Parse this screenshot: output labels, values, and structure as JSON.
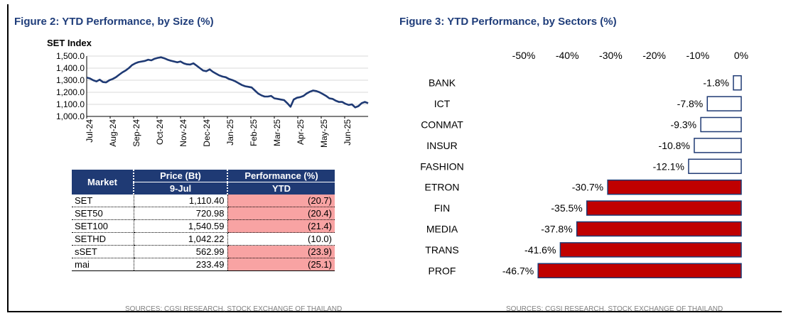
{
  "figures": {
    "left_title": "Figure 2: YTD Performance, by Size (%)",
    "right_title": "Figure 3: YTD Performance, by Sectors (%)",
    "left_source": "SOURCES: CGSI RESEARCH,  STOCK EXCHANGE OF THAILAND",
    "right_source": "SOURCES: CGSI RESEARCH,  STOCK EXCHANGE OF THAILAND"
  },
  "colors": {
    "title": "#1f3d7a",
    "line": "#1f3a74",
    "bar_fill": "#c00000",
    "bar_small_fill": "#ffffff",
    "bar_border": "#1f3a74",
    "table_header": "#1f3a74",
    "perf_highlight": "#f8a3a3"
  },
  "chart_data": [
    {
      "type": "line",
      "title": "SET Index",
      "xlabel": "",
      "ylabel": "",
      "ylim": [
        1000,
        1500
      ],
      "yticks": [
        "1,000.0",
        "1,100.0",
        "1,200.0",
        "1,300.0",
        "1,400.0",
        "1,500.0"
      ],
      "x_tick_labels": [
        "Jul-24",
        "Aug-24",
        "Sep-24",
        "Oct-24",
        "Nov-24",
        "Dec-24",
        "Jan-25",
        "Feb-25",
        "Mar-25",
        "Apr-25",
        "May-25",
        "Jun-25"
      ],
      "grid": true,
      "series": [
        {
          "values": [
            1322,
            1315,
            1300,
            1290,
            1305,
            1285,
            1282,
            1300,
            1310,
            1325,
            1345,
            1365,
            1380,
            1400,
            1425,
            1440,
            1450,
            1455,
            1460,
            1470,
            1465,
            1478,
            1485,
            1490,
            1482,
            1470,
            1462,
            1455,
            1448,
            1455,
            1440,
            1432,
            1430,
            1440,
            1420,
            1400,
            1380,
            1375,
            1390,
            1370,
            1355,
            1340,
            1330,
            1325,
            1310,
            1302,
            1290,
            1275,
            1260,
            1250,
            1245,
            1240,
            1215,
            1190,
            1175,
            1165,
            1165,
            1170,
            1150,
            1145,
            1140,
            1135,
            1110,
            1080,
            1140,
            1155,
            1160,
            1170,
            1190,
            1205,
            1215,
            1210,
            1200,
            1185,
            1170,
            1150,
            1145,
            1130,
            1120,
            1120,
            1105,
            1095,
            1100,
            1075,
            1085,
            1110,
            1120,
            1110
          ]
        }
      ]
    },
    {
      "type": "bar",
      "orientation": "horizontal",
      "xlim": [
        -50,
        0
      ],
      "xticks": [
        "-50%",
        "-40%",
        "-30%",
        "-20%",
        "-10%",
        "0%"
      ],
      "grid": false,
      "categories": [
        "BANK",
        "ICT",
        "CONMAT",
        "INSUR",
        "FASHION",
        "ETRON",
        "FIN",
        "MEDIA",
        "TRANS",
        "PROF"
      ],
      "values": [
        -1.8,
        -7.8,
        -9.3,
        -10.8,
        -12.1,
        -30.7,
        -35.5,
        -37.8,
        -41.6,
        -46.7
      ],
      "labels": [
        "-1.8%",
        "-7.8%",
        "-9.3%",
        "-10.8%",
        "-12.1%",
        "-30.7%",
        "-35.5%",
        "-37.8%",
        "-41.6%",
        "-46.7%"
      ]
    },
    {
      "type": "table",
      "headers": {
        "market": "Market",
        "price": "Price (Bt)",
        "price_sub": "9-Jul",
        "perf": "Performance (%)",
        "perf_sub": "YTD"
      },
      "rows": [
        {
          "market": "SET",
          "price": "1,110.40",
          "perf": "(20.7)",
          "perf_value": -20.7,
          "highlight": true
        },
        {
          "market": "SET50",
          "price": "720.98",
          "perf": "(20.4)",
          "perf_value": -20.4,
          "highlight": true
        },
        {
          "market": "SET100",
          "price": "1,540.59",
          "perf": "(21.4)",
          "perf_value": -21.4,
          "highlight": true
        },
        {
          "market": "SETHD",
          "price": "1,042.22",
          "perf": "(10.0)",
          "perf_value": -10.0,
          "highlight": false
        },
        {
          "market": "sSET",
          "price": "562.99",
          "perf": "(23.9)",
          "perf_value": -23.9,
          "highlight": true
        },
        {
          "market": "mai",
          "price": "233.49",
          "perf": "(25.1)",
          "perf_value": -25.1,
          "highlight": true
        }
      ]
    }
  ]
}
